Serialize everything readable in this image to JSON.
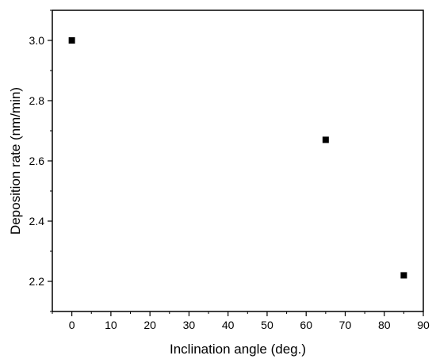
{
  "chart_data": {
    "type": "scatter",
    "title": "",
    "xlabel": "Inclination angle (deg.)",
    "ylabel": "Deposition rate (nm/min)",
    "xlim": [
      -5,
      90
    ],
    "ylim": [
      2.1,
      3.1
    ],
    "x_ticks": [
      0,
      10,
      20,
      30,
      40,
      50,
      60,
      70,
      80,
      90
    ],
    "y_ticks": [
      2.2,
      2.4,
      2.6,
      2.8,
      3.0
    ],
    "x_tick_labels": [
      "0",
      "10",
      "20",
      "30",
      "40",
      "50",
      "60",
      "70",
      "80",
      "90"
    ],
    "y_tick_labels": [
      "2.2",
      "2.4",
      "2.6",
      "2.8",
      "3.0"
    ],
    "grid": false,
    "legend": "none",
    "marker": "square",
    "marker_color": "#000000",
    "series": [
      {
        "points": [
          {
            "x": 0,
            "y": 3.0
          },
          {
            "x": 65,
            "y": 2.67
          },
          {
            "x": 85,
            "y": 2.22
          }
        ]
      }
    ]
  }
}
